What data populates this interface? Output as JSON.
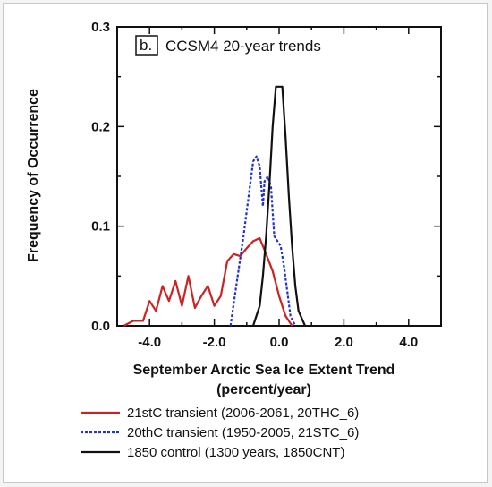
{
  "chart_data": {
    "type": "line",
    "panel_label": "b.",
    "title": "CCSM4 20-year trends",
    "xlabel": "September Arctic Sea Ice Extent Trend",
    "xlabel_unit": "(percent/year)",
    "ylabel": "Frequency of Occurrence",
    "xlim": [
      -5.0,
      5.0
    ],
    "ylim": [
      0.0,
      0.3
    ],
    "xticks": [
      -4.0,
      -2.0,
      0.0,
      2.0,
      4.0
    ],
    "xtick_labels": [
      "-4.0",
      "-2.0",
      "0.0",
      "2.0",
      "4.0"
    ],
    "yticks": [
      0.0,
      0.1,
      0.2,
      0.3
    ],
    "ytick_labels": [
      "0.0",
      "0.1",
      "0.2",
      "0.3"
    ],
    "legend_position": "below",
    "series": [
      {
        "name": "21stC transient (2006-2061, 20THC_6)",
        "color": "#cc2222",
        "style": "solid",
        "x": [
          -4.8,
          -4.5,
          -4.2,
          -4.0,
          -3.8,
          -3.6,
          -3.4,
          -3.2,
          -3.0,
          -2.8,
          -2.6,
          -2.4,
          -2.2,
          -2.0,
          -1.8,
          -1.6,
          -1.4,
          -1.2,
          -1.0,
          -0.8,
          -0.6,
          -0.4,
          -0.2,
          0.0,
          0.2,
          0.4
        ],
        "y": [
          0.0,
          0.005,
          0.005,
          0.025,
          0.015,
          0.04,
          0.025,
          0.045,
          0.02,
          0.05,
          0.018,
          0.03,
          0.04,
          0.02,
          0.03,
          0.065,
          0.072,
          0.07,
          0.078,
          0.085,
          0.088,
          0.072,
          0.055,
          0.03,
          0.01,
          0.0
        ]
      },
      {
        "name": "20thC transient (1950-2005, 21STC_6)",
        "color": "#2233cc",
        "style": "dashed",
        "x": [
          -1.5,
          -1.3,
          -1.1,
          -0.9,
          -0.8,
          -0.7,
          -0.6,
          -0.5,
          -0.45,
          -0.35,
          -0.25,
          -0.15,
          -0.05,
          0.05,
          0.15,
          0.25,
          0.35,
          0.5
        ],
        "y": [
          0.0,
          0.045,
          0.09,
          0.14,
          0.165,
          0.17,
          0.16,
          0.12,
          0.145,
          0.15,
          0.14,
          0.09,
          0.085,
          0.08,
          0.06,
          0.035,
          0.01,
          0.0
        ]
      },
      {
        "name": "1850 control (1300 years, 1850CNT)",
        "color": "#111111",
        "style": "solid",
        "x": [
          -0.8,
          -0.6,
          -0.5,
          -0.4,
          -0.3,
          -0.2,
          -0.1,
          0.0,
          0.1,
          0.2,
          0.3,
          0.4,
          0.5,
          0.6,
          0.8
        ],
        "y": [
          0.0,
          0.02,
          0.05,
          0.09,
          0.14,
          0.2,
          0.24,
          0.24,
          0.24,
          0.19,
          0.13,
          0.08,
          0.04,
          0.015,
          0.0
        ]
      }
    ]
  }
}
